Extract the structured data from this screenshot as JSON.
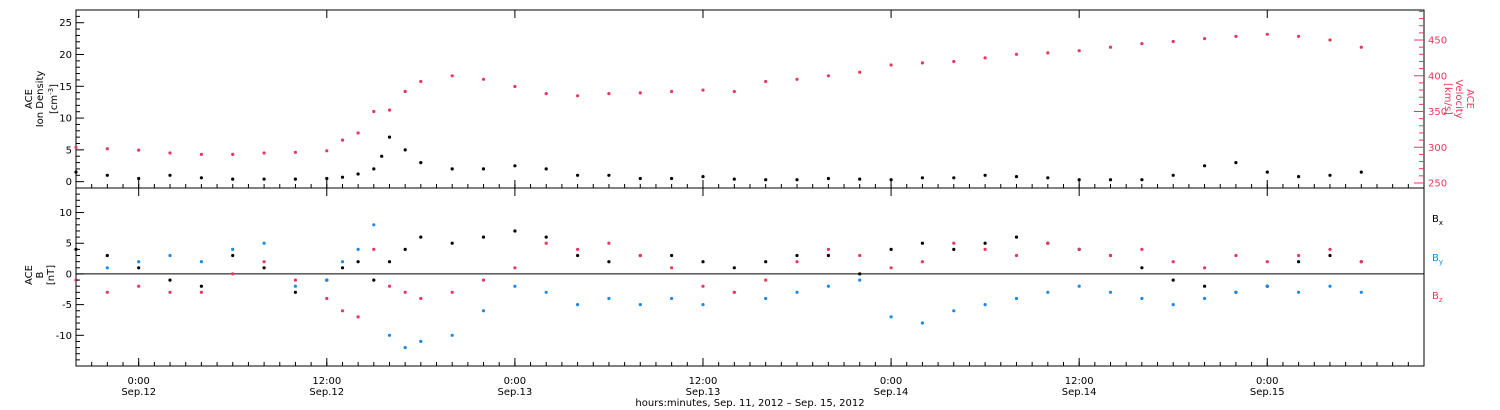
{
  "chart_data": [
    {
      "type": "scatter",
      "panel": "plasma",
      "ylabel_left": [
        "ACE",
        "Ion Density",
        "[cm",
        "-3",
        "]"
      ],
      "ylabel_right": [
        "ACE",
        "Velocity",
        "[km/s]"
      ],
      "yticks_left": [
        "0",
        "5",
        "10",
        "15",
        "20",
        "25"
      ],
      "yticks_right": [
        "250",
        "300",
        "350",
        "400",
        "450"
      ],
      "ylim_left": [
        -1,
        27
      ],
      "ylim_right": [
        243,
        492
      ],
      "series": [
        {
          "name": "",
          "axis": "left",
          "color": "#000000",
          "x_hours": [
            0,
            2,
            4,
            6,
            8,
            10,
            12,
            14,
            16,
            17,
            18,
            19,
            19.5,
            20,
            21,
            22,
            24,
            26,
            28,
            30,
            32,
            34,
            36,
            38,
            40,
            42,
            44,
            46,
            48,
            50,
            52,
            54,
            56,
            58,
            60,
            62,
            64,
            66,
            68,
            70,
            72,
            74,
            76,
            78,
            80,
            82
          ],
          "y": [
            1.5,
            1.0,
            0.5,
            1.0,
            0.6,
            0.4,
            0.4,
            0.4,
            0.5,
            0.7,
            1.2,
            2.0,
            4.0,
            7.0,
            5.0,
            3.0,
            2.0,
            2.0,
            2.5,
            2.0,
            1.0,
            1.0,
            0.5,
            0.5,
            0.8,
            0.4,
            0.3,
            0.3,
            0.5,
            0.4,
            0.3,
            0.6,
            0.6,
            1.0,
            0.8,
            0.6,
            0.3,
            0.3,
            0.3,
            1.0,
            2.5,
            3.0,
            1.5,
            0.8,
            1.0,
            1.5
          ]
        },
        {
          "name": "",
          "axis": "right",
          "color": "#e8385e",
          "x_hours": [
            0,
            2,
            4,
            6,
            8,
            10,
            12,
            14,
            16,
            17,
            18,
            19,
            20,
            21,
            22,
            24,
            26,
            28,
            30,
            32,
            34,
            36,
            38,
            40,
            42,
            44,
            46,
            48,
            50,
            52,
            54,
            56,
            58,
            60,
            62,
            64,
            66,
            68,
            70,
            72,
            74,
            76,
            78,
            80,
            82
          ],
          "y": [
            300,
            298,
            296,
            292,
            290,
            290,
            292,
            293,
            295,
            310,
            320,
            350,
            352,
            378,
            392,
            400,
            395,
            385,
            375,
            372,
            375,
            376,
            378,
            380,
            378,
            392,
            395,
            400,
            405,
            415,
            418,
            420,
            425,
            430,
            432,
            435,
            440,
            445,
            448,
            452,
            455,
            458,
            455,
            450,
            440
          ]
        }
      ]
    },
    {
      "type": "scatter",
      "panel": "magnetic",
      "ylabel_left": [
        "ACE",
        "B",
        "[nT]"
      ],
      "yticks_left": [
        "-10",
        "-5",
        "0",
        "5",
        "10"
      ],
      "ylim": [
        -15,
        14
      ],
      "zero_line": true,
      "legend": [
        "B",
        "B",
        "B"
      ],
      "legend_subscripts": [
        "x",
        "y",
        "z"
      ],
      "series": [
        {
          "name": "B",
          "color": "#000000",
          "x_hours": [
            0,
            2,
            4,
            6,
            8,
            10,
            12,
            14,
            16,
            17,
            18,
            19,
            20,
            21,
            22,
            24,
            26,
            28,
            30,
            32,
            34,
            36,
            38,
            40,
            42,
            44,
            46,
            48,
            50,
            52,
            54,
            56,
            58,
            60,
            62,
            64,
            66,
            68,
            70,
            72,
            74,
            76,
            78,
            80,
            82
          ],
          "y": [
            4,
            3,
            1,
            -1,
            -2,
            3,
            1,
            -3,
            -1,
            1,
            2,
            -1,
            2,
            4,
            6,
            5,
            6,
            7,
            6,
            3,
            2,
            3,
            3,
            2,
            1,
            2,
            3,
            3,
            0,
            4,
            5,
            4,
            5,
            6,
            5,
            4,
            3,
            1,
            -1,
            -2,
            -3,
            -2,
            2,
            3,
            2
          ]
        },
        {
          "name": "B",
          "color": "#1e88e5",
          "x_hours": [
            0,
            2,
            4,
            6,
            8,
            10,
            12,
            14,
            16,
            17,
            18,
            19,
            20,
            21,
            22,
            24,
            26,
            28,
            30,
            32,
            34,
            36,
            38,
            40,
            42,
            44,
            46,
            48,
            50,
            52,
            54,
            56,
            58,
            60,
            62,
            64,
            66,
            68,
            70,
            72,
            74,
            76,
            78,
            80,
            82
          ],
          "y": [
            -1,
            1,
            2,
            3,
            2,
            4,
            5,
            -2,
            -1,
            2,
            4,
            8,
            -10,
            -12,
            -11,
            -10,
            -6,
            -2,
            -3,
            -5,
            -4,
            -5,
            -4,
            -5,
            -3,
            -4,
            -3,
            -2,
            -1,
            -7,
            -8,
            -6,
            -5,
            -4,
            -3,
            -2,
            -3,
            -4,
            -5,
            -4,
            -3,
            -2,
            -3,
            -2,
            -3
          ]
        },
        {
          "name": "B",
          "color": "#e8385e",
          "x_hours": [
            0,
            2,
            4,
            6,
            8,
            10,
            12,
            14,
            16,
            17,
            18,
            19,
            20,
            21,
            22,
            24,
            26,
            28,
            30,
            32,
            34,
            36,
            38,
            40,
            42,
            44,
            46,
            48,
            50,
            52,
            54,
            56,
            58,
            60,
            62,
            64,
            66,
            68,
            70,
            72,
            74,
            76,
            78,
            80,
            82
          ],
          "y": [
            -1,
            -3,
            -2,
            -3,
            -3,
            0,
            2,
            -1,
            -4,
            -6,
            -7,
            4,
            -2,
            -3,
            -4,
            -3,
            -1,
            1,
            5,
            4,
            5,
            3,
            1,
            -2,
            -3,
            -1,
            2,
            4,
            3,
            1,
            2,
            5,
            4,
            3,
            5,
            4,
            3,
            4,
            2,
            1,
            3,
            2,
            3,
            4,
            2
          ]
        }
      ]
    }
  ],
  "xaxis": {
    "ticks": [
      {
        "hour": 4,
        "time": "0:00",
        "date": "Sep.12"
      },
      {
        "hour": 16,
        "time": "12:00",
        "date": "Sep.12"
      },
      {
        "hour": 28,
        "time": "0:00",
        "date": "Sep.13"
      },
      {
        "hour": 40,
        "time": "12:00",
        "date": "Sep.13"
      },
      {
        "hour": 52,
        "time": "0:00",
        "date": "Sep.14"
      },
      {
        "hour": 64,
        "time": "12:00",
        "date": "Sep.14"
      },
      {
        "hour": 76,
        "time": "0:00",
        "date": "Sep.15"
      }
    ],
    "label": "hours:minutes, Sep. 11, 2012 – Sep. 15, 2012",
    "range_hours": [
      0,
      86
    ]
  }
}
